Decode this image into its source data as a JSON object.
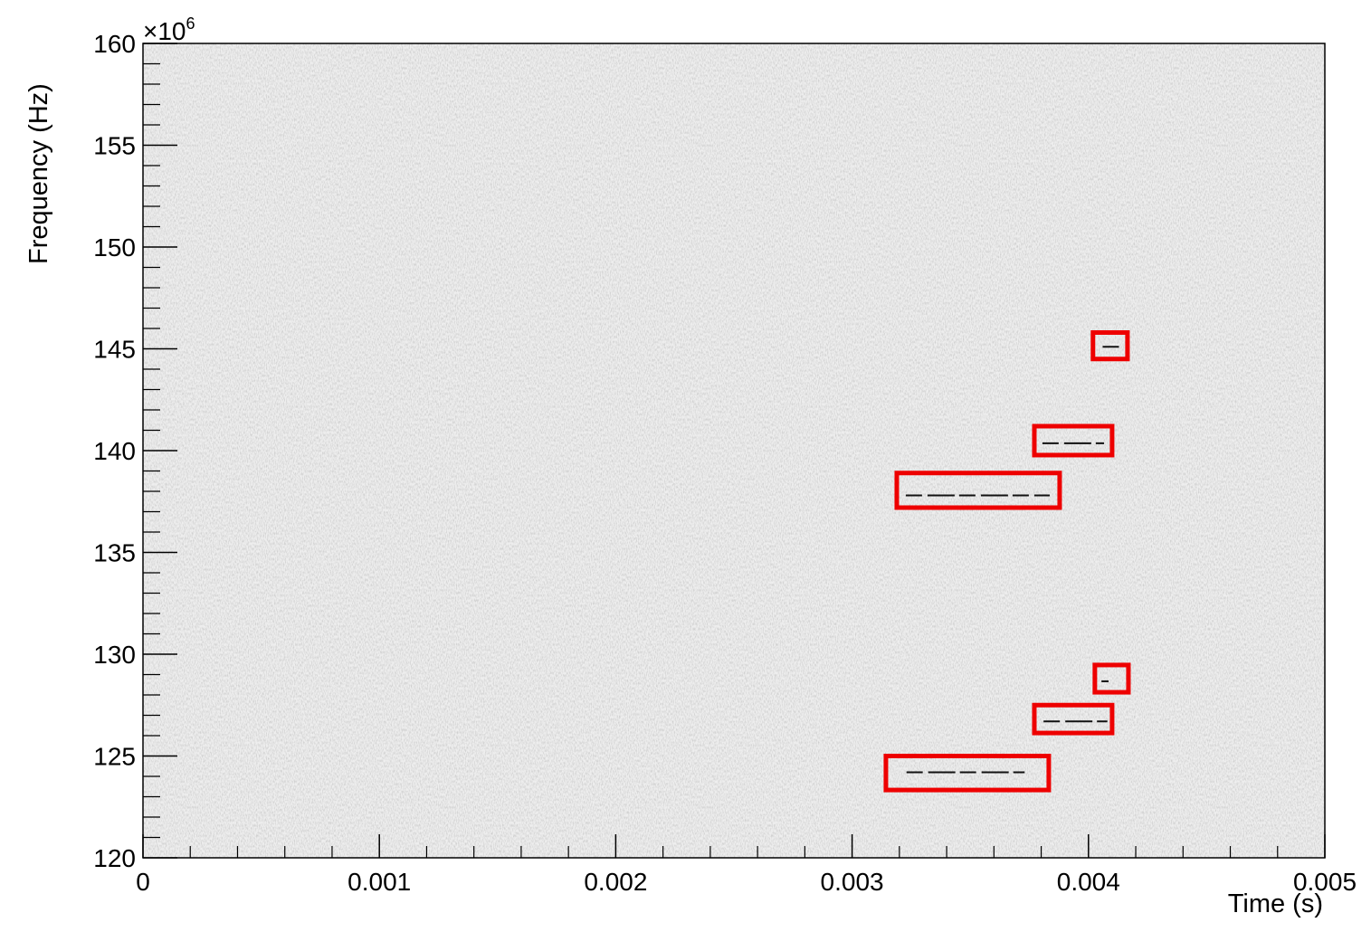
{
  "chart_data": {
    "type": "spectrogram",
    "x_label": "Time (s)",
    "y_label": "Frequency (Hz)",
    "y_exponent": {
      "base": "×10",
      "power": "6"
    },
    "xlim": [
      0,
      0.005
    ],
    "xticks": [
      0,
      0.001,
      0.002,
      0.003,
      0.004,
      0.005
    ],
    "ylim": [
      120,
      160
    ],
    "yticks": [
      120,
      125,
      130,
      135,
      140,
      145,
      150,
      155,
      160
    ],
    "x_minor_divisions": 5,
    "y_minor_divisions": 5,
    "background_color": "#eeeeee",
    "signal_color": "#111111",
    "box_color": "#ee0000",
    "signals": [
      {
        "x": [
          0.00406,
          0.00414
        ],
        "y": 145.1
      },
      {
        "x": [
          0.003805,
          0.004066
        ],
        "y": 140.36
      },
      {
        "x": [
          0.003227,
          0.003836
        ],
        "y": 137.8
      },
      {
        "x": [
          0.004055,
          0.004085
        ],
        "y": 128.67
      },
      {
        "x": [
          0.00381,
          0.00408
        ],
        "y": 126.7
      },
      {
        "x": [
          0.00323,
          0.00373
        ],
        "y": 124.2
      }
    ],
    "boxes": [
      {
        "x": [
          0.004019,
          0.004165
        ],
        "y": [
          144.5,
          145.8
        ]
      },
      {
        "x": [
          0.003771,
          0.0041
        ],
        "y": [
          139.78,
          141.2
        ]
      },
      {
        "x": [
          0.003189,
          0.003878
        ],
        "y": [
          137.2,
          138.9
        ]
      },
      {
        "x": [
          0.004027,
          0.004169
        ],
        "y": [
          128.13,
          129.47
        ]
      },
      {
        "x": [
          0.003771,
          0.0041
        ],
        "y": [
          126.13,
          127.5
        ]
      },
      {
        "x": [
          0.003143,
          0.003832
        ],
        "y": [
          123.33,
          125.0
        ]
      }
    ]
  }
}
